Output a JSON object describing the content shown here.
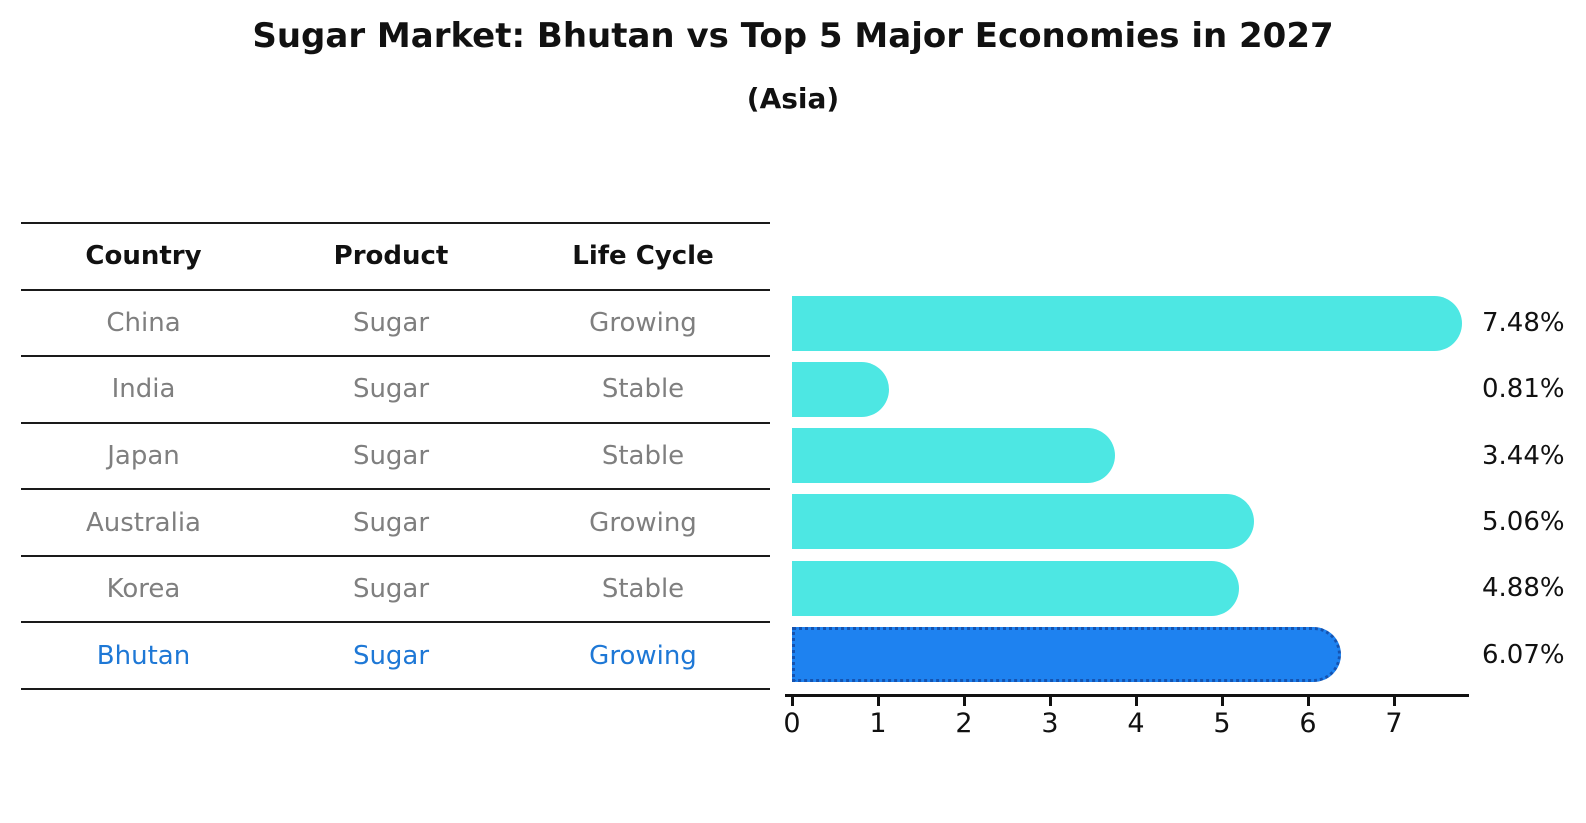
{
  "page": {
    "title": "Sugar Market: Bhutan vs Top 5 Major Economies in 2027",
    "subtitle": "(Asia)"
  },
  "table": {
    "headers": [
      "Country",
      "Product",
      "Life Cycle"
    ],
    "rows": [
      {
        "country": "China",
        "product": "Sugar",
        "life_cycle": "Growing"
      },
      {
        "country": "India",
        "product": "Sugar",
        "life_cycle": "Stable"
      },
      {
        "country": "Japan",
        "product": "Sugar",
        "life_cycle": "Stable"
      },
      {
        "country": "Australia",
        "product": "Sugar",
        "life_cycle": "Growing"
      },
      {
        "country": "Korea",
        "product": "Sugar",
        "life_cycle": "Stable"
      },
      {
        "country": "Bhutan",
        "product": "Sugar",
        "life_cycle": "Growing"
      }
    ],
    "highlight_row": "Bhutan",
    "text_color": "#7f7f7f",
    "highlight_text_color": "#1e78d6"
  },
  "chart_data": {
    "type": "bar",
    "orientation": "horizontal",
    "title": "Sugar Market: Bhutan vs Top 5 Major Economies in 2027",
    "subtitle": "(Asia)",
    "categories": [
      "China",
      "India",
      "Japan",
      "Australia",
      "Korea",
      "Bhutan"
    ],
    "values": [
      7.48,
      0.81,
      3.44,
      5.06,
      4.88,
      6.07
    ],
    "value_labels": [
      "7.48%",
      "0.81%",
      "3.44%",
      "5.06%",
      "4.88%",
      "6.07%"
    ],
    "unit": "%",
    "x_ticks": [
      0,
      1,
      2,
      3,
      4,
      5,
      6,
      7
    ],
    "xlim": [
      0,
      7.9
    ],
    "grid": false,
    "legend": "none",
    "bar_color": "#4de7e3",
    "highlight_index": 5,
    "highlight_color": "#1e82f0",
    "highlight_border_color": "#1553b0"
  }
}
